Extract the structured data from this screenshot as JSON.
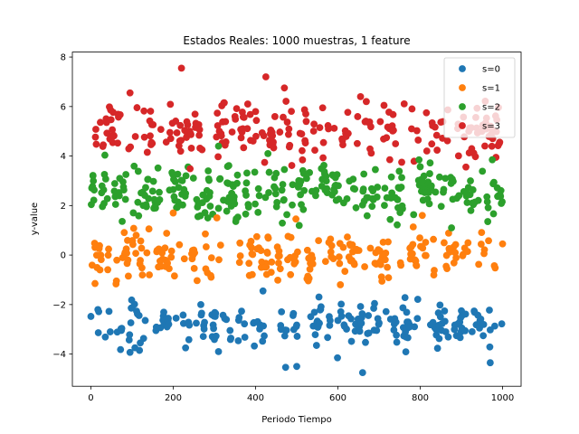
{
  "chart_data": {
    "type": "scatter",
    "title": "Estados Reales: 1000 muestras, 1 feature",
    "xlabel": "Periodo Tiempo",
    "ylabel": "y-value",
    "xlim": [
      -45,
      1045
    ],
    "ylim": [
      -5.3,
      8.2
    ],
    "xticks": [
      0,
      200,
      400,
      600,
      800,
      1000
    ],
    "yticks": [
      -4,
      -2,
      0,
      2,
      4,
      6,
      8
    ],
    "grid": false,
    "legend_position": "top-right",
    "n_samples": 1000,
    "series": [
      {
        "name": "s=0",
        "color": "#1f77b4",
        "center": -2.8,
        "spread": 0.45,
        "points": [
          [
            500,
            -4.5
          ],
          [
            660,
            -4.75
          ],
          [
            970,
            -4.35
          ],
          [
            310,
            -3.9
          ],
          [
            230,
            -3.75
          ],
          [
            120,
            -3.55
          ]
        ]
      },
      {
        "name": "s=1",
        "color": "#ff7f0e",
        "center": 0.0,
        "spread": 0.5,
        "points": [
          [
            10,
            -1.15
          ],
          [
            200,
            1.7
          ],
          [
            805,
            1.6
          ],
          [
            1000,
            0.45
          ]
        ]
      },
      {
        "name": "s=2",
        "color": "#2ca02c",
        "center": 2.5,
        "spread": 0.55,
        "points": [
          [
            5,
            3.2
          ],
          [
            310,
            4.4
          ],
          [
            430,
            4.1
          ],
          [
            975,
            3.85
          ]
        ]
      },
      {
        "name": "s=3",
        "color": "#d62728",
        "center": 5.0,
        "spread": 0.55,
        "points": [
          [
            220,
            7.55
          ],
          [
            425,
            7.2
          ],
          [
            470,
            6.75
          ],
          [
            95,
            6.55
          ],
          [
            655,
            6.4
          ],
          [
            755,
            3.75
          ]
        ]
      }
    ]
  }
}
